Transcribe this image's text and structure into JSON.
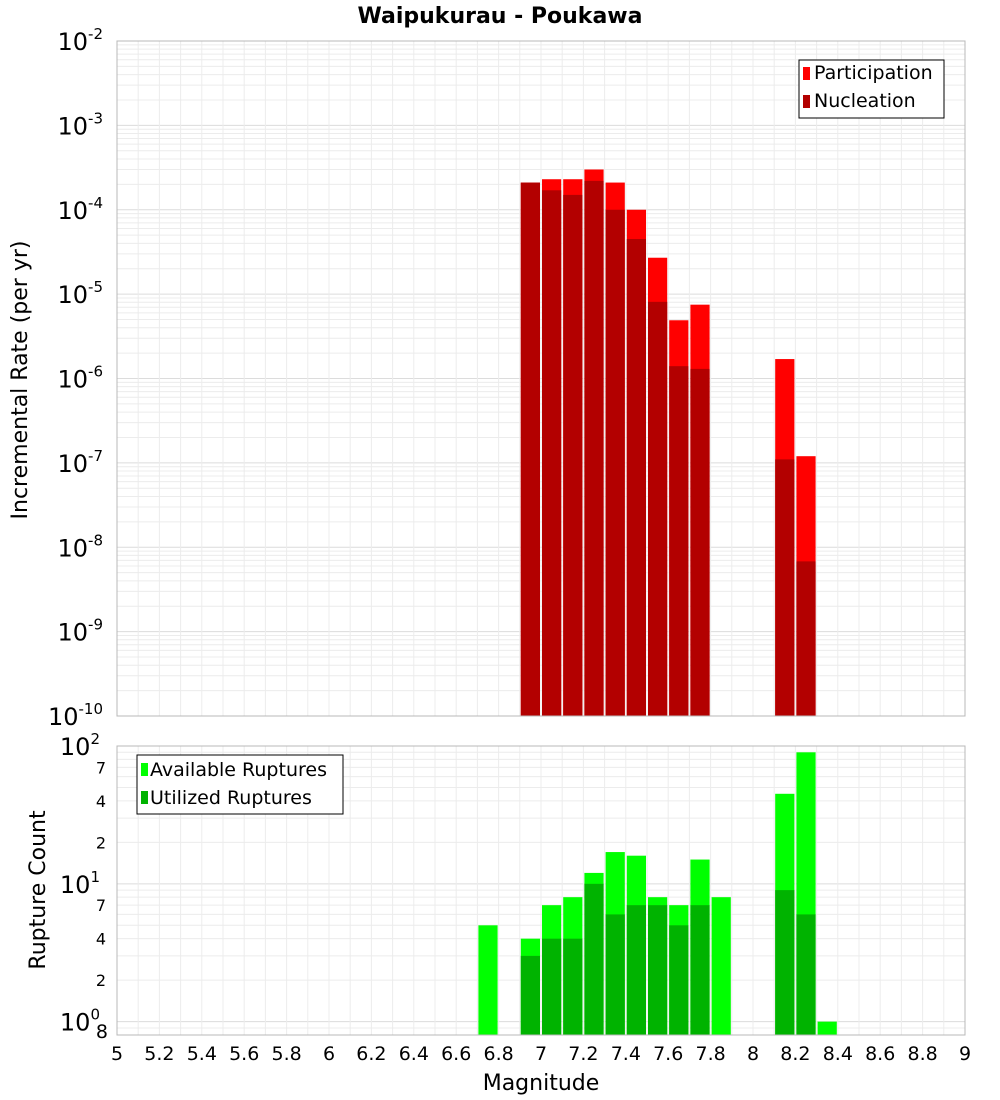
{
  "chart_data": [
    {
      "type": "bar",
      "title": "Waipukurau - Poukawa",
      "ylabel": "Incremental Rate (per yr)",
      "xlabel": "",
      "y_scale": "log",
      "ylim": [
        1e-10,
        0.01
      ],
      "xlim": [
        5,
        9
      ],
      "bar_width": 0.1,
      "grid": true,
      "legend_position": "top-right",
      "y_tick_base": "10",
      "y_tick_exponents": [
        "-10",
        "-9",
        "-8",
        "-7",
        "-6",
        "-5",
        "-4",
        "-3",
        "-2"
      ],
      "x": [
        6.95,
        7.05,
        7.15,
        7.25,
        7.35,
        7.45,
        7.55,
        7.65,
        7.75,
        8.15,
        8.25
      ],
      "series": [
        {
          "name": "Participation",
          "color": "#ff0000",
          "values": [
            0.00021,
            0.00023,
            0.00023,
            0.0003,
            0.00021,
            0.0001,
            2.7e-05,
            4.9e-06,
            7.5e-06,
            1.7e-06,
            1.2e-07
          ]
        },
        {
          "name": "Nucleation",
          "color": "#b30000",
          "values": [
            0.00021,
            0.00017,
            0.00015,
            0.00022,
            0.0001,
            4.5e-05,
            8.1e-06,
            1.4e-06,
            1.3e-06,
            1.1e-07,
            6.8e-09
          ]
        }
      ]
    },
    {
      "type": "bar",
      "title": "",
      "ylabel": "Rupture Count",
      "xlabel": "Magnitude",
      "y_scale": "log",
      "ylim": [
        0.8,
        100
      ],
      "xlim": [
        5,
        9
      ],
      "bar_width": 0.1,
      "grid": true,
      "legend_position": "top-left",
      "y_tick_base": "10",
      "y_major_ticks": [
        {
          "value": 1,
          "exponent": "0"
        },
        {
          "value": 10,
          "exponent": "1"
        },
        {
          "value": 100,
          "exponent": "2"
        }
      ],
      "y_minor_ticks": [
        {
          "value": 0.8,
          "label": "8"
        },
        {
          "value": 2,
          "label": "2"
        },
        {
          "value": 4,
          "label": "4"
        },
        {
          "value": 7,
          "label": "7"
        },
        {
          "value": 20,
          "label": "2"
        },
        {
          "value": 40,
          "label": "4"
        },
        {
          "value": 70,
          "label": "7"
        }
      ],
      "x_ticks": [
        "5",
        "5.2",
        "5.4",
        "5.6",
        "5.8",
        "6",
        "6.2",
        "6.4",
        "6.6",
        "6.8",
        "7",
        "7.2",
        "7.4",
        "7.6",
        "7.8",
        "8",
        "8.2",
        "8.4",
        "8.6",
        "8.8",
        "9"
      ],
      "x": [
        6.75,
        6.95,
        7.05,
        7.15,
        7.25,
        7.35,
        7.45,
        7.55,
        7.65,
        7.75,
        7.85,
        8.15,
        8.25,
        8.35
      ],
      "series": [
        {
          "name": "Available Ruptures",
          "color": "#00ff00",
          "values": [
            5,
            4,
            7,
            8,
            12,
            17,
            16,
            8,
            7,
            15,
            8,
            45,
            90,
            1
          ]
        },
        {
          "name": "Utilized Ruptures",
          "color": "#00b300",
          "values": [
            0,
            3,
            4,
            4,
            10,
            6,
            7,
            7,
            5,
            7,
            0,
            9,
            6,
            0
          ]
        }
      ]
    }
  ]
}
